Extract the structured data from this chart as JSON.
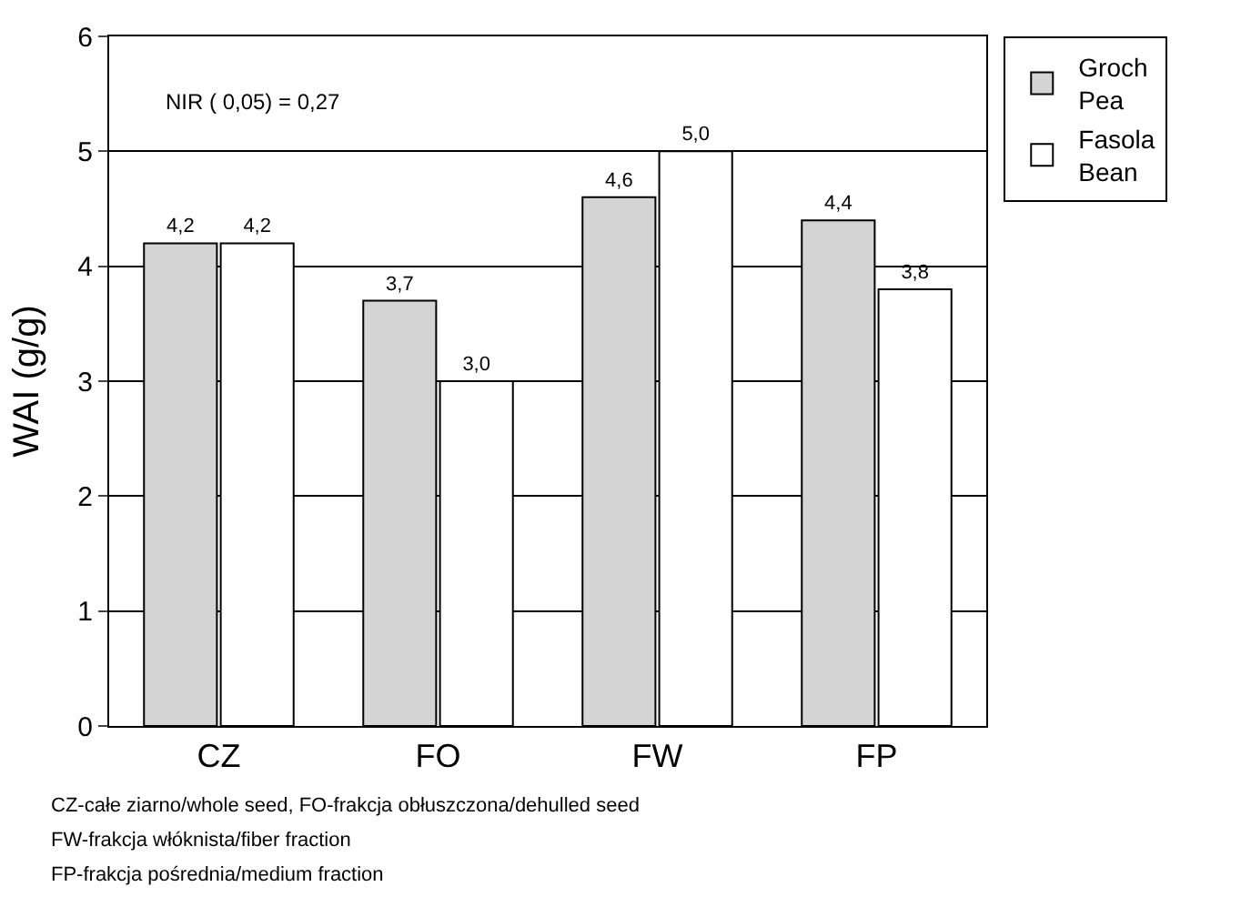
{
  "chart_data": {
    "type": "bar",
    "ylabel": "WAI (g/g)",
    "categories": [
      "CZ",
      "FO",
      "FW",
      "FP"
    ],
    "series": [
      {
        "name": "Groch\nPea",
        "color": "#d4d4d4",
        "values": [
          4.2,
          3.7,
          4.6,
          4.4
        ],
        "value_labels": [
          "4,2",
          "3,7",
          "4,6",
          "4,4"
        ]
      },
      {
        "name": "Fasola\nBean",
        "color": "#ffffff",
        "values": [
          4.2,
          3.0,
          5.0,
          3.8
        ],
        "value_labels": [
          "4,2",
          "3,0",
          "5,0",
          "3,8"
        ]
      }
    ],
    "ylim": [
      0,
      6
    ],
    "yticks": [
      0,
      1,
      2,
      3,
      4,
      5,
      6
    ],
    "grid": "y",
    "legend": "top right",
    "annotations": [
      "NIR ( 0,05) = 0,27",
      "CZ-całe ziarno/whole seed, FO-frakcja obłuszczona/dehulled seed",
      "FW-frakcja włóknista/fiber fraction",
      "FP-frakcja pośrednia/medium fraction"
    ]
  }
}
